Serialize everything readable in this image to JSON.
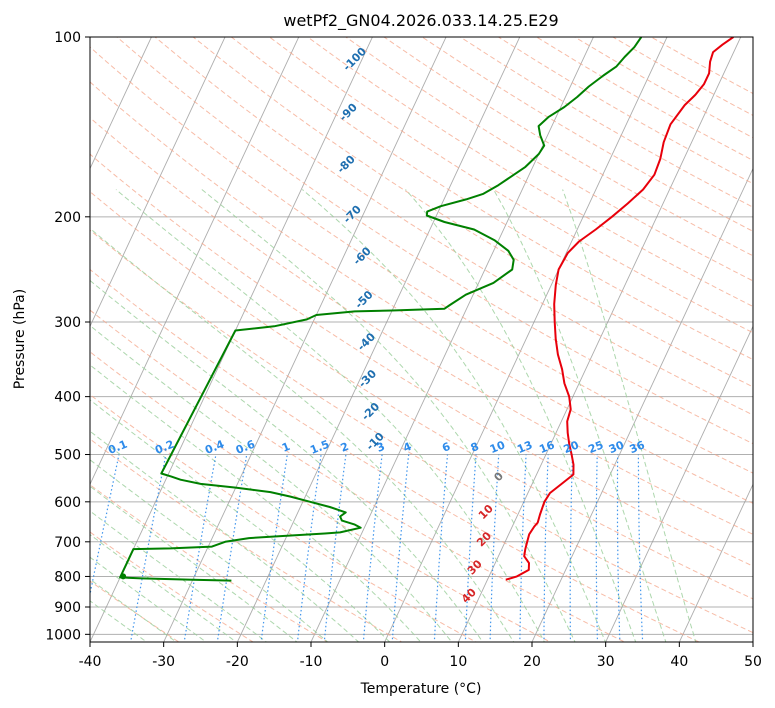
{
  "chart_data": {
    "type": "line",
    "title": "wetPf2_GN04.2026.033.14.25.E29",
    "xlabel": "Temperature (°C)",
    "ylabel": "Pressure (hPa)",
    "xlim": [
      -40,
      50
    ],
    "ylim": [
      1030,
      100
    ],
    "y_scale": "log",
    "skew": "skew-T",
    "grid": true,
    "x_ticks": [
      -40,
      -30,
      -20,
      -10,
      0,
      10,
      20,
      30,
      40,
      50
    ],
    "y_ticks": [
      100,
      200,
      300,
      400,
      500,
      600,
      700,
      800,
      900,
      1000
    ],
    "colors": {
      "temperature": "#e8000b",
      "dewpoint": "#008000",
      "isotherm": "#999999",
      "dry_adiabat": "#f4a58a",
      "moist_adiabat": "#9fd09f",
      "mixing_ratio": "#2e8bea",
      "dry_label": "#1f6fb0",
      "moist_label": "#d62728"
    },
    "series": [
      {
        "name": "",
        "kind": "temperature",
        "points": [
          [
            12.5,
            810
          ],
          [
            13.8,
            800
          ],
          [
            15.0,
            780
          ],
          [
            14.6,
            760
          ],
          [
            13.5,
            740
          ],
          [
            13.2,
            720
          ],
          [
            13.0,
            700
          ],
          [
            12.8,
            680
          ],
          [
            13.0,
            660
          ],
          [
            13.2,
            650
          ],
          [
            13.0,
            630
          ],
          [
            12.8,
            600
          ],
          [
            13.0,
            580
          ],
          [
            14.0,
            560
          ],
          [
            15.0,
            540
          ],
          [
            14.4,
            520
          ],
          [
            13.5,
            500
          ],
          [
            12.5,
            480
          ],
          [
            11.6,
            460
          ],
          [
            10.8,
            440
          ],
          [
            10.5,
            420
          ],
          [
            9.5,
            400
          ],
          [
            8.0,
            380
          ],
          [
            6.8,
            360
          ],
          [
            5.3,
            340
          ],
          [
            4.0,
            320
          ],
          [
            2.8,
            300
          ],
          [
            1.6,
            280
          ],
          [
            0.6,
            260
          ],
          [
            0.0,
            245
          ],
          [
            0.2,
            230
          ],
          [
            1.0,
            220
          ],
          [
            2.5,
            210
          ],
          [
            3.9,
            200
          ],
          [
            5.2,
            190
          ],
          [
            6.4,
            180
          ],
          [
            7.0,
            170
          ],
          [
            6.8,
            160
          ],
          [
            6.2,
            150
          ],
          [
            6.0,
            140
          ],
          [
            6.7,
            130
          ],
          [
            7.5,
            125
          ],
          [
            8.0,
            120
          ],
          [
            8.0,
            115
          ],
          [
            7.4,
            110
          ],
          [
            7.2,
            106
          ],
          [
            8.0,
            103
          ],
          [
            9.0,
            100
          ]
        ]
      },
      {
        "name": "",
        "kind": "dewpoint",
        "points": [
          [
            -24.7,
            813
          ],
          [
            -30,
            810
          ],
          [
            -37,
            806
          ],
          [
            -40,
            803
          ],
          [
            -40,
            720
          ],
          [
            -35,
            718
          ],
          [
            -29.5,
            713
          ],
          [
            -28.0,
            700
          ],
          [
            -25.0,
            690
          ],
          [
            -20,
            684
          ],
          [
            -15.0,
            678
          ],
          [
            -13.0,
            675
          ],
          [
            -10.5,
            663
          ],
          [
            -11.5,
            655
          ],
          [
            -13.5,
            645
          ],
          [
            -14.0,
            635
          ],
          [
            -13.5,
            625
          ],
          [
            -16.0,
            612
          ],
          [
            -19.0,
            600
          ],
          [
            -22.0,
            588
          ],
          [
            -25.0,
            578
          ],
          [
            -30,
            568
          ],
          [
            -35,
            560
          ],
          [
            -38,
            551
          ],
          [
            -39.5,
            544
          ],
          [
            -41,
            538
          ],
          [
            -40,
            310
          ],
          [
            -35,
            305
          ],
          [
            -31,
            297
          ],
          [
            -30,
            292
          ],
          [
            -25,
            288
          ],
          [
            -20,
            287
          ],
          [
            -13,
            285
          ],
          [
            -12.5,
            281
          ],
          [
            -11,
            270
          ],
          [
            -8.0,
            258
          ],
          [
            -6.3,
            245
          ],
          [
            -6.7,
            236
          ],
          [
            -8,
            228
          ],
          [
            -10.5,
            219
          ],
          [
            -14.0,
            210
          ],
          [
            -18.5,
            204
          ],
          [
            -21.3,
            199
          ],
          [
            -21.5,
            196
          ],
          [
            -20,
            192
          ],
          [
            -17.0,
            187
          ],
          [
            -15,
            183
          ],
          [
            -13.5,
            177
          ],
          [
            -11.0,
            165
          ],
          [
            -10.0,
            157
          ],
          [
            -9.8,
            152
          ],
          [
            -11.0,
            146
          ],
          [
            -11.8,
            141
          ],
          [
            -11.0,
            136
          ],
          [
            -9.5,
            131
          ],
          [
            -8.4,
            126
          ],
          [
            -7.5,
            121
          ],
          [
            -6.2,
            116
          ],
          [
            -5.0,
            112
          ],
          [
            -4.5,
            108
          ],
          [
            -3.8,
            104
          ],
          [
            -3.5,
            100
          ]
        ]
      }
    ],
    "dry_adiabat_labels": [
      "-100",
      "-90",
      "-80",
      "-70",
      "-60",
      "-50",
      "-40",
      "-30",
      "-20",
      "-10"
    ],
    "moist_adiabat_labels": [
      "0",
      "10",
      "20",
      "30",
      "40"
    ],
    "mixing_ratio_labels": [
      "0.1",
      "0.2",
      "0.4",
      "0.6",
      "1",
      "1.5",
      "2",
      "3",
      "4",
      "6",
      "8",
      "10",
      "13",
      "16",
      "20",
      "25",
      "30",
      "36"
    ]
  }
}
